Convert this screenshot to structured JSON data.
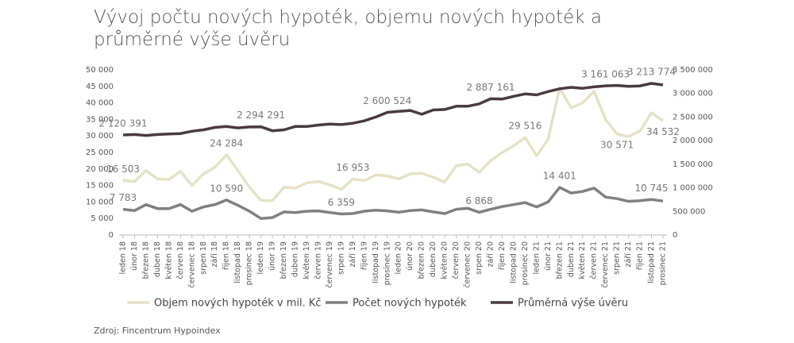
{
  "chart_data": {
    "type": "line",
    "title": "Vývoj počtu nových hypoték, objemu nových hypoték a průměrné výše úvěru",
    "source": "Zdroj: Fincentrum Hypoindex",
    "categories": [
      "leden 18",
      "únor 18",
      "březen 18",
      "duben 18",
      "květen 18",
      "červen 18",
      "červenec 18",
      "srpen 18",
      "září 18",
      "říjen 18",
      "listopad 18",
      "prosinec 18",
      "leden 19",
      "únor 19",
      "březen 19",
      "duben 19",
      "květen 19",
      "červen 19",
      "červenec 19",
      "srpen 19",
      "září 19",
      "říjen 19",
      "listopad 19",
      "prosinec 19",
      "leden 20",
      "únor 20",
      "březen 20",
      "duben 20",
      "květen 20",
      "červen 20",
      "červenec 20",
      "srpen 20",
      "září 20",
      "říjen 20",
      "listopad 20",
      "prosinec 20",
      "leden 21",
      "únor 21",
      "březen 21",
      "duben 21",
      "květen 21",
      "červen 21",
      "červenec 21",
      "srpen 21",
      "září 21",
      "říjen 21",
      "listopad 21",
      "prosinec 21"
    ],
    "ylim": [
      0,
      50000
    ],
    "yticks": [
      0,
      {
        "value": 5000,
        "label": "5 000"
      },
      {
        "value": 10000,
        "label": "10 000"
      },
      {
        "value": 15000,
        "label": "15 000"
      },
      {
        "value": 20000,
        "label": "20 000"
      },
      {
        "value": 25000,
        "label": "25 000"
      },
      {
        "value": 30000,
        "label": "30 000"
      },
      {
        "value": 35000,
        "label": "35 000"
      },
      {
        "value": 40000,
        "label": "40 000"
      },
      {
        "value": 45000,
        "label": "45 000"
      },
      {
        "value": 50000,
        "label": "50 000"
      }
    ],
    "y2lim": [
      0,
      3500000
    ],
    "y2ticks": [
      0,
      {
        "value": 500000,
        "label": "500 000"
      },
      {
        "value": 1000000,
        "label": "1 000 000"
      },
      {
        "value": 1500000,
        "label": "1 500 000"
      },
      {
        "value": 2000000,
        "label": "2 000 000"
      },
      {
        "value": 2500000,
        "label": "2 500 000"
      },
      {
        "value": 3000000,
        "label": "3 000 000"
      },
      {
        "value": 3500000,
        "label": "3 500 000"
      }
    ],
    "grid": false,
    "legend": "bottom",
    "series": [
      {
        "name": "Objem nových hypoték v mil. Kč",
        "color": "#e6e0c8",
        "values": [
          16503,
          16200,
          19500,
          17000,
          16800,
          19300,
          15000,
          18500,
          20500,
          24284,
          19500,
          14500,
          10500,
          10400,
          14500,
          14200,
          15800,
          16200,
          15200,
          13800,
          16953,
          16500,
          18200,
          17900,
          17000,
          18500,
          18700,
          17500,
          16000,
          21000,
          21500,
          19000,
          22500,
          25000,
          27000,
          29516,
          24000,
          29000,
          44500,
          38500,
          40000,
          43500,
          35000,
          30571,
          29800,
          31500,
          37000,
          34532
        ],
        "value_labels": [
          "16 503",
          null,
          null,
          null,
          null,
          null,
          null,
          null,
          null,
          "24 284",
          null,
          null,
          null,
          null,
          null,
          null,
          null,
          null,
          null,
          null,
          "16 953",
          null,
          null,
          null,
          null,
          null,
          null,
          null,
          null,
          null,
          null,
          null,
          null,
          null,
          null,
          "29 516",
          null,
          null,
          null,
          null,
          null,
          null,
          null,
          "30 571",
          null,
          null,
          null,
          "34 532"
        ]
      },
      {
        "name": "Počet nových hypoték",
        "color": "#808080",
        "values": [
          7783,
          7400,
          9200,
          8000,
          8000,
          9200,
          7200,
          8500,
          9200,
          10590,
          9000,
          7200,
          5000,
          5300,
          7000,
          6800,
          7200,
          7300,
          6800,
          6359,
          6500,
          7200,
          7500,
          7300,
          6900,
          7400,
          7600,
          7000,
          6500,
          7800,
          8100,
          6868,
          7800,
          8600,
          9200,
          9800,
          8500,
          10000,
          14401,
          12700,
          13200,
          14200,
          11500,
          11000,
          10200,
          10400,
          10745,
          10300
        ],
        "value_labels": [
          "7 783",
          null,
          null,
          null,
          null,
          null,
          null,
          null,
          null,
          "10 590",
          null,
          null,
          null,
          null,
          null,
          null,
          null,
          null,
          null,
          "6 359",
          null,
          null,
          null,
          null,
          null,
          null,
          null,
          null,
          null,
          null,
          null,
          "6 868",
          null,
          null,
          null,
          null,
          null,
          null,
          "14 401",
          null,
          null,
          null,
          null,
          null,
          null,
          null,
          "10 745",
          null
        ]
      },
      {
        "name": "Průměrná výše úvěru",
        "color": "#4a3a40",
        "axis": "y2",
        "values": [
          2120391,
          2130000,
          2110000,
          2130000,
          2140000,
          2150000,
          2200000,
          2230000,
          2280000,
          2300000,
          2270000,
          2290000,
          2294291,
          2210000,
          2230000,
          2300000,
          2300000,
          2330000,
          2350000,
          2340000,
          2370000,
          2420000,
          2500000,
          2600524,
          2620000,
          2640000,
          2560000,
          2650000,
          2660000,
          2730000,
          2730000,
          2780000,
          2887161,
          2880000,
          2940000,
          2990000,
          2970000,
          3040000,
          3100000,
          3130000,
          3110000,
          3140000,
          3161063,
          3170000,
          3150000,
          3160000,
          3213774,
          3180000
        ],
        "value_labels": [
          "2 120 391",
          null,
          null,
          null,
          null,
          null,
          null,
          null,
          null,
          null,
          null,
          null,
          "2 294 291",
          null,
          null,
          null,
          null,
          null,
          null,
          null,
          null,
          null,
          null,
          "2 600 524",
          null,
          null,
          null,
          null,
          null,
          null,
          null,
          null,
          "2 887 161",
          null,
          null,
          null,
          null,
          null,
          null,
          null,
          null,
          null,
          "3 161 063",
          null,
          null,
          null,
          "3 213 774",
          null
        ]
      }
    ]
  }
}
